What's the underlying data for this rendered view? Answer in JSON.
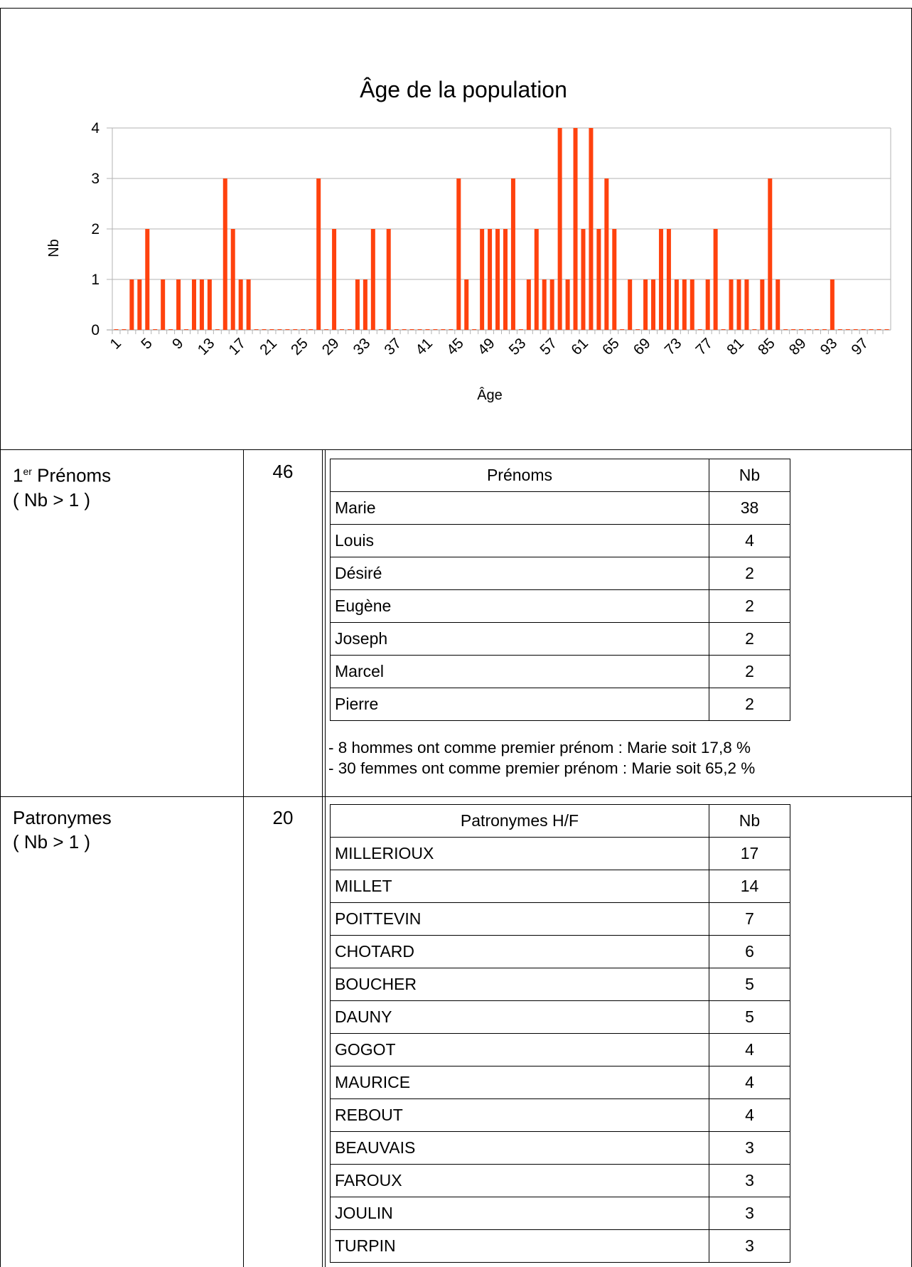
{
  "chart_data": {
    "type": "bar",
    "title": "Âge de la population",
    "xlabel": "Âge",
    "ylabel": "Nb",
    "ylim": [
      0,
      4
    ],
    "yticks": [
      0,
      1,
      2,
      3,
      4
    ],
    "x": [
      1,
      2,
      3,
      4,
      5,
      6,
      7,
      8,
      9,
      10,
      11,
      12,
      13,
      14,
      15,
      16,
      17,
      18,
      19,
      20,
      21,
      22,
      23,
      24,
      25,
      26,
      27,
      28,
      29,
      30,
      31,
      32,
      33,
      34,
      35,
      36,
      37,
      38,
      39,
      40,
      41,
      42,
      43,
      44,
      45,
      46,
      47,
      48,
      49,
      50,
      51,
      52,
      53,
      54,
      55,
      56,
      57,
      58,
      59,
      60,
      61,
      62,
      63,
      64,
      65,
      66,
      67,
      68,
      69,
      70,
      71,
      72,
      73,
      74,
      75,
      76,
      77,
      78,
      79,
      80,
      81,
      82,
      83,
      84,
      85,
      86,
      87,
      88,
      89,
      90,
      91,
      92,
      93,
      94,
      95,
      96,
      97,
      98,
      99,
      100
    ],
    "x_tick_labels": [
      "1",
      "5",
      "9",
      "13",
      "17",
      "21",
      "25",
      "29",
      "33",
      "37",
      "41",
      "45",
      "49",
      "53",
      "57",
      "61",
      "65",
      "69",
      "73",
      "77",
      "81",
      "85",
      "89",
      "93",
      "97"
    ],
    "values": [
      0,
      0,
      1,
      1,
      2,
      0,
      1,
      0,
      1,
      0,
      1,
      1,
      1,
      0,
      3,
      2,
      1,
      1,
      0,
      0,
      0,
      0,
      0,
      0,
      0,
      0,
      3,
      0,
      2,
      0,
      0,
      1,
      1,
      2,
      0,
      2,
      0,
      0,
      0,
      0,
      0,
      0,
      0,
      0,
      3,
      1,
      0,
      2,
      2,
      2,
      2,
      3,
      0,
      1,
      2,
      1,
      1,
      4,
      1,
      4,
      2,
      4,
      2,
      3,
      2,
      0,
      1,
      0,
      1,
      1,
      2,
      2,
      1,
      1,
      1,
      0,
      1,
      2,
      0,
      1,
      1,
      1,
      0,
      1,
      3,
      1,
      0,
      0,
      0,
      0,
      0,
      0,
      1,
      0,
      0,
      0,
      0,
      0,
      0,
      0
    ],
    "bar_color": "#ff420e",
    "grid": true
  },
  "prenoms": {
    "label_main": "1",
    "label_sup": "er",
    "label_rest": " Prénoms",
    "label_sub": "( Nb > 1 )",
    "count": "46",
    "header_name": "Prénoms",
    "header_nb": "Nb",
    "rows": [
      {
        "name": "Marie",
        "nb": "38"
      },
      {
        "name": "Louis",
        "nb": "4"
      },
      {
        "name": "Désiré",
        "nb": "2"
      },
      {
        "name": "Eugène",
        "nb": "2"
      },
      {
        "name": "Joseph",
        "nb": "2"
      },
      {
        "name": "Marcel",
        "nb": "2"
      },
      {
        "name": "Pierre",
        "nb": "2"
      }
    ],
    "note_1": "- 8 hommes ont comme premier prénom : Marie soit 17,8 %",
    "note_2": "- 30 femmes ont comme premier prénom : Marie soit 65,2 %"
  },
  "patronymes": {
    "label_main": "Patronymes",
    "label_sub": "( Nb > 1 )",
    "count": "20",
    "header_name": "Patronymes H/F",
    "header_nb": "Nb",
    "rows": [
      {
        "name": "MILLERIOUX",
        "nb": "17"
      },
      {
        "name": "MILLET",
        "nb": "14"
      },
      {
        "name": "POITTEVIN",
        "nb": "7"
      },
      {
        "name": "CHOTARD",
        "nb": "6"
      },
      {
        "name": "BOUCHER",
        "nb": "5"
      },
      {
        "name": "DAUNY",
        "nb": "5"
      },
      {
        "name": "GOGOT",
        "nb": "4"
      },
      {
        "name": "MAURICE",
        "nb": "4"
      },
      {
        "name": "REBOUT",
        "nb": "4"
      },
      {
        "name": "BEAUVAIS",
        "nb": "3"
      },
      {
        "name": "FAROUX",
        "nb": "3"
      },
      {
        "name": "JOULIN",
        "nb": "3"
      },
      {
        "name": "TURPIN",
        "nb": "3"
      }
    ]
  }
}
